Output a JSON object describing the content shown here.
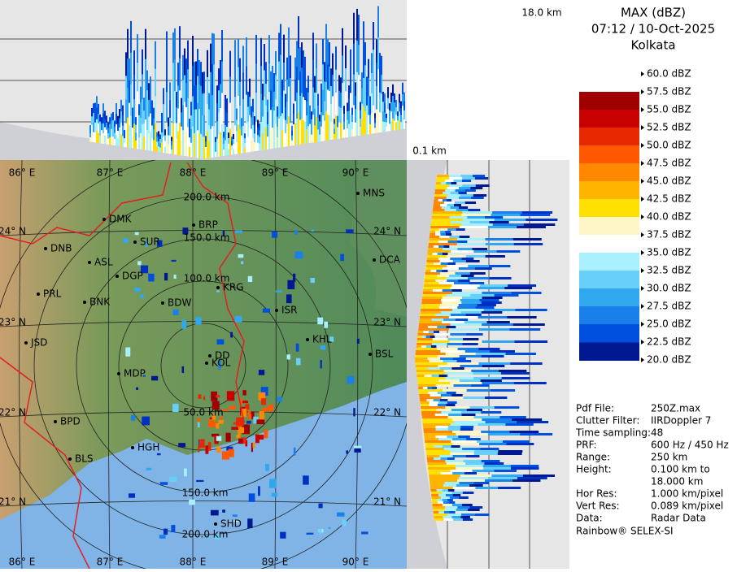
{
  "header": {
    "line1": "MAX (dBZ)",
    "line2": "07:12 / 10-Oct-2025",
    "line3": "Kolkata"
  },
  "height_labels": {
    "top": "18.0 km",
    "bottom": "0.1 km"
  },
  "legend": [
    {
      "label": "60.0 dBZ",
      "color": "#ffffff"
    },
    {
      "label": "57.5 dBZ",
      "color": "#a00000"
    },
    {
      "label": "55.0 dBZ",
      "color": "#c80000"
    },
    {
      "label": "52.5 dBZ",
      "color": "#e82800"
    },
    {
      "label": "50.0 dBZ",
      "color": "#ff5800"
    },
    {
      "label": "47.5 dBZ",
      "color": "#ff8800"
    },
    {
      "label": "45.0 dBZ",
      "color": "#ffb400"
    },
    {
      "label": "42.5 dBZ",
      "color": "#ffe000"
    },
    {
      "label": "40.0 dBZ",
      "color": "#fff6c8"
    },
    {
      "label": "37.5 dBZ",
      "color": "#ffffff"
    },
    {
      "label": "35.0 dBZ",
      "color": "#a8f0ff"
    },
    {
      "label": "32.5 dBZ",
      "color": "#68d0f8"
    },
    {
      "label": "30.0 dBZ",
      "color": "#30a8f0"
    },
    {
      "label": "27.5 dBZ",
      "color": "#1880e8"
    },
    {
      "label": "25.0 dBZ",
      "color": "#0050e0"
    },
    {
      "label": "22.5 dBZ",
      "color": "#0030c0"
    },
    {
      "label": "20.0 dBZ",
      "color": "#001890"
    }
  ],
  "info": [
    [
      "Pdf File:",
      "250Z.max"
    ],
    [
      "Clutter Filter:",
      "IIRDoppler 7"
    ],
    [
      "Time sampling:",
      "48"
    ],
    [
      "PRF:",
      "600 Hz / 450 Hz"
    ],
    [
      "Range:",
      "250 km"
    ],
    [
      "Height:",
      "0.100 km to"
    ],
    [
      "",
      "18.000 km"
    ],
    [
      "Hor Res:",
      "1.000 km/pixel"
    ],
    [
      "Vert Res:",
      "0.089 km/pixel"
    ],
    [
      "Data:",
      "Radar Data"
    ]
  ],
  "footer": "Rainbow® SELEX-SI",
  "map": {
    "lon_labels": [
      "86° E",
      "87° E",
      "88° E",
      "89° E",
      "90° E"
    ],
    "lat_labels": [
      "24° N",
      "23° N",
      "22° N",
      "21° N"
    ],
    "ring_labels": [
      "50.0 km",
      "100.0 km",
      "150.0 km",
      "200.0 km"
    ],
    "cities": [
      "MNS",
      "BRP",
      "DMK",
      "SUR",
      "DNB",
      "ASL",
      "DGP",
      "DCA",
      "PRL",
      "BNK",
      "KRG",
      "BDW",
      "ISR",
      "JSD",
      "KHL",
      "BSL",
      "DD",
      "KOL",
      "MDP",
      "BPD",
      "HGH",
      "BLS",
      "SHD"
    ]
  }
}
